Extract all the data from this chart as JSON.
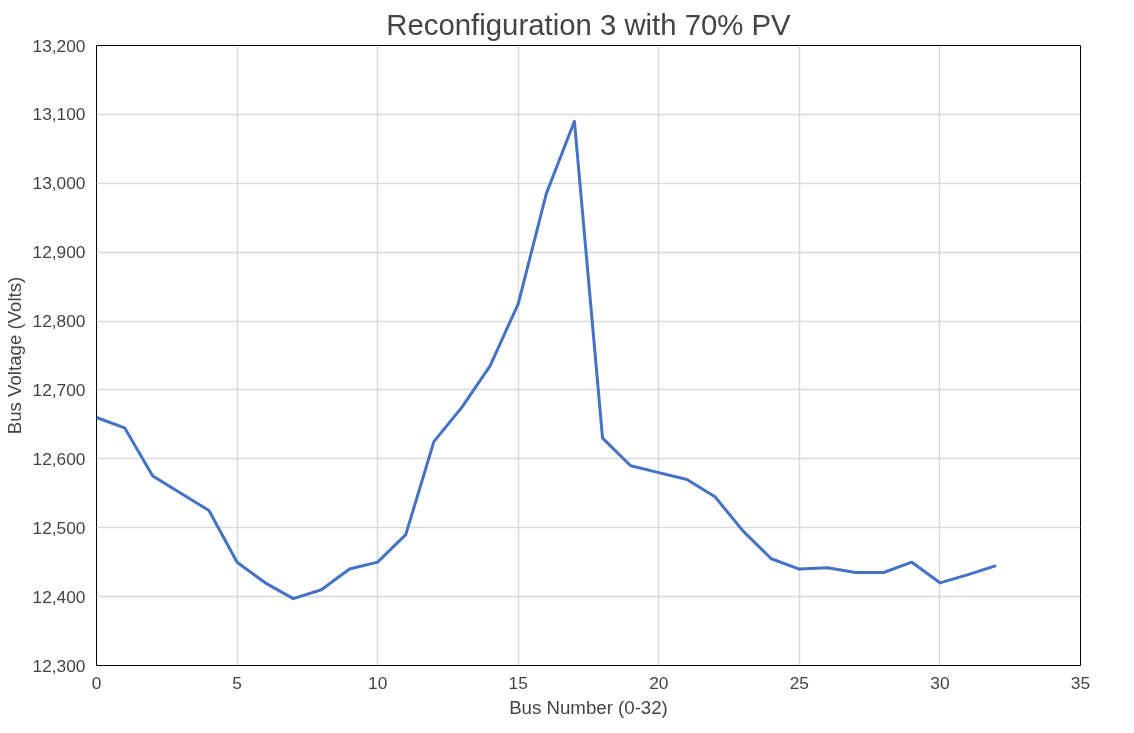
{
  "chart_data": {
    "type": "line",
    "title": "Reconfiguration 3 with 70% PV",
    "xlabel": "Bus Number (0-32)",
    "ylabel": "Bus Voltage (Volts)",
    "x": [
      0,
      1,
      2,
      3,
      4,
      5,
      6,
      7,
      8,
      9,
      10,
      11,
      12,
      13,
      14,
      15,
      16,
      17,
      18,
      19,
      20,
      21,
      22,
      23,
      24,
      25,
      26,
      27,
      28,
      29,
      30,
      31,
      32
    ],
    "series": [
      {
        "color": "#4472c4",
        "values": [
          12660,
          12645,
          12575,
          12550,
          12525,
          12450,
          12420,
          12397,
          12410,
          12440,
          12450,
          12490,
          12625,
          12675,
          12735,
          12825,
          12985,
          13090,
          12630,
          12590,
          12580,
          12570,
          12545,
          12495,
          12455,
          12440,
          12442,
          12435,
          12435,
          12450,
          12420,
          12432,
          12445
        ]
      }
    ],
    "xlim": [
      0,
      35
    ],
    "xticks": [
      0,
      5,
      10,
      15,
      20,
      25,
      30,
      35
    ],
    "ylim": [
      12300,
      13200
    ],
    "yticks": [
      {
        "value": 12300,
        "label": "12,300"
      },
      {
        "value": 12400,
        "label": "12,400"
      },
      {
        "value": 12500,
        "label": "12,500"
      },
      {
        "value": 12600,
        "label": "12,600"
      },
      {
        "value": 12700,
        "label": "12,700"
      },
      {
        "value": 12800,
        "label": "12,800"
      },
      {
        "value": 12900,
        "label": "12,900"
      },
      {
        "value": 13000,
        "label": "13,000"
      },
      {
        "value": 13100,
        "label": "13,100"
      },
      {
        "value": 13200,
        "label": "13,200"
      }
    ],
    "grid": true,
    "marker": "none",
    "line_style": "solid"
  }
}
